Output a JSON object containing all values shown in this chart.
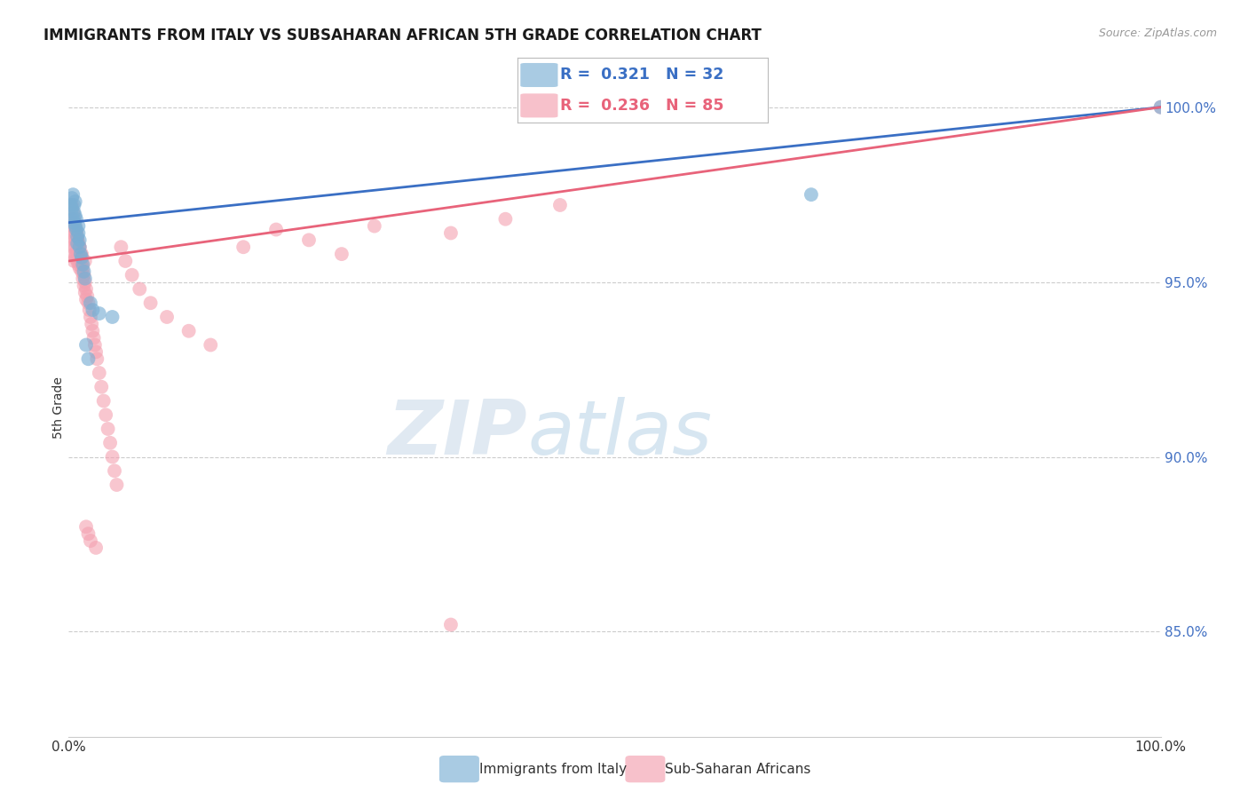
{
  "title": "IMMIGRANTS FROM ITALY VS SUBSAHARAN AFRICAN 5TH GRADE CORRELATION CHART",
  "source": "Source: ZipAtlas.com",
  "ylabel": "5th Grade",
  "italy_color": "#7bafd4",
  "subsaharan_color": "#f4a0b0",
  "italy_line_color": "#3a6fc4",
  "subsaharan_line_color": "#e8637a",
  "italy_R": 0.321,
  "italy_N": 32,
  "subsaharan_R": 0.236,
  "subsaharan_N": 85,
  "legend_label_italy": "Immigrants from Italy",
  "legend_label_subsaharan": "Sub-Saharan Africans",
  "background_color": "#ffffff",
  "xlim": [
    0.0,
    1.0
  ],
  "ylim": [
    0.82,
    1.008
  ],
  "yticks": [
    0.85,
    0.9,
    0.95,
    1.0
  ],
  "ytick_labels": [
    "85.0%",
    "90.0%",
    "95.0%",
    "100.0%"
  ],
  "italy_x": [
    0.002,
    0.003,
    0.003,
    0.004,
    0.004,
    0.005,
    0.005,
    0.005,
    0.006,
    0.006,
    0.006,
    0.007,
    0.007,
    0.008,
    0.008,
    0.009,
    0.009,
    0.01,
    0.01,
    0.011,
    0.012,
    0.013,
    0.014,
    0.015,
    0.016,
    0.018,
    0.02,
    0.022,
    0.028,
    0.04,
    0.68,
    1.0
  ],
  "italy_y": [
    0.972,
    0.974,
    0.971,
    0.975,
    0.968,
    0.97,
    0.972,
    0.967,
    0.969,
    0.966,
    0.973,
    0.968,
    0.965,
    0.963,
    0.961,
    0.966,
    0.964,
    0.962,
    0.96,
    0.958,
    0.957,
    0.955,
    0.953,
    0.951,
    0.932,
    0.928,
    0.944,
    0.942,
    0.941,
    0.94,
    0.975,
    1.0
  ],
  "subsaharan_x": [
    0.002,
    0.003,
    0.003,
    0.004,
    0.004,
    0.005,
    0.005,
    0.005,
    0.006,
    0.006,
    0.006,
    0.007,
    0.007,
    0.007,
    0.008,
    0.008,
    0.008,
    0.009,
    0.009,
    0.009,
    0.01,
    0.01,
    0.01,
    0.011,
    0.011,
    0.012,
    0.012,
    0.013,
    0.013,
    0.014,
    0.014,
    0.015,
    0.015,
    0.016,
    0.016,
    0.017,
    0.018,
    0.019,
    0.02,
    0.021,
    0.022,
    0.023,
    0.024,
    0.025,
    0.026,
    0.028,
    0.03,
    0.032,
    0.034,
    0.036,
    0.038,
    0.04,
    0.042,
    0.044,
    0.048,
    0.052,
    0.058,
    0.065,
    0.075,
    0.09,
    0.11,
    0.13,
    0.16,
    0.19,
    0.22,
    0.25,
    0.28,
    0.35,
    0.4,
    0.45,
    0.003,
    0.004,
    0.005,
    0.006,
    0.007,
    0.008,
    0.01,
    0.012,
    0.015,
    0.016,
    0.018,
    0.02,
    0.025,
    0.35,
    1.0
  ],
  "subsaharan_y": [
    0.968,
    0.966,
    0.963,
    0.965,
    0.96,
    0.962,
    0.958,
    0.956,
    0.963,
    0.96,
    0.957,
    0.964,
    0.961,
    0.958,
    0.962,
    0.959,
    0.956,
    0.961,
    0.958,
    0.955,
    0.96,
    0.957,
    0.954,
    0.958,
    0.955,
    0.956,
    0.953,
    0.954,
    0.951,
    0.952,
    0.949,
    0.95,
    0.947,
    0.948,
    0.945,
    0.946,
    0.944,
    0.942,
    0.94,
    0.938,
    0.936,
    0.934,
    0.932,
    0.93,
    0.928,
    0.924,
    0.92,
    0.916,
    0.912,
    0.908,
    0.904,
    0.9,
    0.896,
    0.892,
    0.96,
    0.956,
    0.952,
    0.948,
    0.944,
    0.94,
    0.936,
    0.932,
    0.96,
    0.965,
    0.962,
    0.958,
    0.966,
    0.964,
    0.968,
    0.972,
    0.972,
    0.97,
    0.968,
    0.966,
    0.964,
    0.962,
    0.96,
    0.958,
    0.956,
    0.88,
    0.878,
    0.876,
    0.874,
    0.852,
    1.0
  ]
}
